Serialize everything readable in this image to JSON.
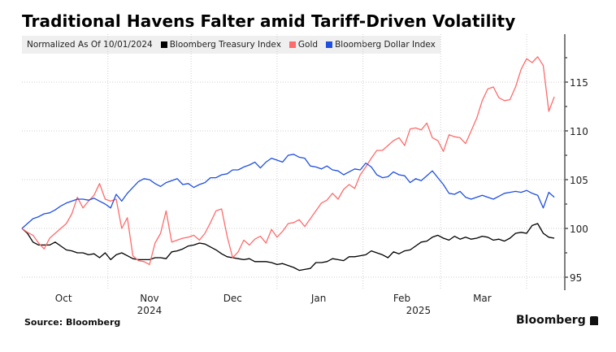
{
  "chart_data": {
    "type": "line",
    "title": "Traditional Havens Falter amid Tariff-Driven Volatility",
    "subtitle": "Normalized As Of 10/01/2024",
    "xlabel": "",
    "ylabel": "",
    "ylim": [
      94,
      119
    ],
    "y_ticks": [
      95,
      100,
      105,
      110,
      115
    ],
    "y_tick_labels": [
      "95",
      "100",
      "105",
      "110",
      "115"
    ],
    "y_axis_side": "right",
    "grid": true,
    "legend_position": "top-left",
    "x_domain_days": [
      0,
      195
    ],
    "x_month_boundaries_days": [
      0,
      31,
      61,
      92,
      123,
      151,
      182
    ],
    "x_tick_labels": [
      {
        "label": "Oct",
        "day": 15
      },
      {
        "label": "Nov",
        "day": 46
      },
      {
        "label": "Dec",
        "day": 76
      },
      {
        "label": "Jan",
        "day": 107
      },
      {
        "label": "Feb",
        "day": 137
      },
      {
        "label": "Mar",
        "day": 166
      }
    ],
    "x_year_labels": [
      {
        "label": "2024",
        "day": 46
      },
      {
        "label": "2025",
        "day": 143
      }
    ],
    "series": [
      {
        "name": "Bloomberg Treasury Index",
        "color": "#000000",
        "days": [
          0,
          2,
          4,
          6,
          8,
          10,
          12,
          14,
          16,
          18,
          20,
          22,
          24,
          26,
          28,
          30,
          32,
          34,
          36,
          38,
          40,
          42,
          44,
          46,
          48,
          50,
          52,
          54,
          56,
          58,
          60,
          62,
          64,
          66,
          68,
          70,
          72,
          74,
          76,
          78,
          80,
          82,
          84,
          86,
          88,
          90,
          92,
          94,
          96,
          98,
          100,
          102,
          104,
          106,
          108,
          110,
          112,
          114,
          116,
          118,
          120,
          122,
          124,
          126,
          128,
          130,
          132,
          134,
          136,
          138,
          140,
          142,
          144,
          146,
          148,
          150,
          152,
          154,
          156,
          158,
          160,
          162,
          164,
          166,
          168,
          170,
          172,
          174,
          176,
          178,
          180,
          182,
          184,
          186,
          188,
          190,
          192
        ],
        "values": [
          100,
          99.5,
          98.6,
          98.3,
          98.3,
          98.3,
          98.6,
          98.2,
          97.8,
          97.7,
          97.5,
          97.5,
          97.3,
          97.4,
          97.0,
          97.5,
          96.8,
          97.3,
          97.5,
          97.2,
          96.9,
          96.8,
          96.8,
          96.8,
          97.0,
          97.0,
          96.9,
          97.6,
          97.7,
          97.9,
          98.2,
          98.3,
          98.5,
          98.4,
          98.1,
          97.8,
          97.4,
          97.1,
          97.0,
          96.9,
          96.8,
          96.9,
          96.6,
          96.6,
          96.6,
          96.5,
          96.3,
          96.4,
          96.2,
          96.0,
          95.7,
          95.8,
          95.9,
          96.5,
          96.5,
          96.6,
          96.9,
          96.8,
          96.7,
          97.1,
          97.1,
          97.2,
          97.3,
          97.7,
          97.5,
          97.3,
          97.0,
          97.6,
          97.4,
          97.7,
          97.8,
          98.2,
          98.6,
          98.7,
          99.1,
          99.3,
          99.0,
          98.8,
          99.2,
          98.9,
          99.1,
          98.9,
          99.0,
          99.2,
          99.1,
          98.8,
          98.9,
          98.7,
          99.0,
          99.5,
          99.6,
          99.5,
          100.3,
          100.5,
          99.5,
          99.1,
          99.0
        ],
        "visible_x_range": "Oct 2024 – early Apr 2025"
      },
      {
        "name": "Gold",
        "color": "#ff6b6b",
        "days": [
          0,
          2,
          4,
          6,
          8,
          10,
          12,
          14,
          16,
          18,
          20,
          22,
          24,
          26,
          28,
          30,
          32,
          34,
          36,
          38,
          40,
          42,
          44,
          46,
          48,
          50,
          52,
          54,
          56,
          58,
          60,
          62,
          64,
          66,
          68,
          70,
          72,
          74,
          76,
          78,
          80,
          82,
          84,
          86,
          88,
          90,
          92,
          94,
          96,
          98,
          100,
          102,
          104,
          106,
          108,
          110,
          112,
          114,
          116,
          118,
          120,
          122,
          124,
          126,
          128,
          130,
          132,
          134,
          136,
          138,
          140,
          142,
          144,
          146,
          148,
          150,
          152,
          154,
          156,
          158,
          160,
          162,
          164,
          166,
          168,
          170,
          172,
          174,
          176,
          178,
          180,
          182,
          184,
          186,
          188,
          190,
          192
        ],
        "values": [
          100,
          99.6,
          99.3,
          98.5,
          97.9,
          99.0,
          99.5,
          100.0,
          100.5,
          101.5,
          103.2,
          102.1,
          102.8,
          103.4,
          104.6,
          103.0,
          102.8,
          103.0,
          100.0,
          101.1,
          97.2,
          96.7,
          96.6,
          96.3,
          98.5,
          99.5,
          101.8,
          98.6,
          98.8,
          99.0,
          99.1,
          99.3,
          98.8,
          99.5,
          100.6,
          101.8,
          102.0,
          99.2,
          97.0,
          97.6,
          98.8,
          98.3,
          98.9,
          99.2,
          98.5,
          99.9,
          99.1,
          99.7,
          100.5,
          100.6,
          100.9,
          100.2,
          101.0,
          101.8,
          102.6,
          102.9,
          103.6,
          103.0,
          104.0,
          104.5,
          104.1,
          105.5,
          106.3,
          107.2,
          108.0,
          108.0,
          108.5,
          109.0,
          109.3,
          108.5,
          110.2,
          110.3,
          110.1,
          110.8,
          109.3,
          109.0,
          107.9,
          109.6,
          109.4,
          109.3,
          108.7,
          110.0,
          111.3,
          113.1,
          114.3,
          114.5,
          113.4,
          113.1,
          113.2,
          114.5,
          116.3,
          117.4,
          117.0,
          117.6,
          116.7,
          112.0,
          113.5
        ],
        "visible_x_range": "Oct 2024 – early Apr 2025"
      },
      {
        "name": "Bloomberg Dollar Index",
        "color": "#1f4fe0",
        "days": [
          0,
          2,
          4,
          6,
          8,
          10,
          12,
          14,
          16,
          18,
          20,
          22,
          24,
          26,
          28,
          30,
          32,
          34,
          36,
          38,
          40,
          42,
          44,
          46,
          48,
          50,
          52,
          54,
          56,
          58,
          60,
          62,
          64,
          66,
          68,
          70,
          72,
          74,
          76,
          78,
          80,
          82,
          84,
          86,
          88,
          90,
          92,
          94,
          96,
          98,
          100,
          102,
          104,
          106,
          108,
          110,
          112,
          114,
          116,
          118,
          120,
          122,
          124,
          126,
          128,
          130,
          132,
          134,
          136,
          138,
          140,
          142,
          144,
          146,
          148,
          150,
          152,
          154,
          156,
          158,
          160,
          162,
          164,
          166,
          168,
          170,
          172,
          174,
          176,
          178,
          180,
          182,
          184,
          186,
          188,
          190,
          192
        ],
        "values": [
          100,
          100.5,
          101.0,
          101.2,
          101.5,
          101.6,
          101.9,
          102.3,
          102.6,
          102.8,
          103.0,
          103.0,
          102.9,
          103.1,
          102.8,
          102.5,
          102.1,
          103.5,
          102.8,
          103.6,
          104.2,
          104.8,
          105.1,
          105.0,
          104.6,
          104.3,
          104.7,
          104.9,
          105.1,
          104.5,
          104.6,
          104.2,
          104.5,
          104.7,
          105.2,
          105.2,
          105.5,
          105.6,
          106.0,
          106.0,
          106.3,
          106.5,
          106.8,
          106.2,
          106.8,
          107.2,
          107.0,
          106.8,
          107.5,
          107.6,
          107.3,
          107.2,
          106.4,
          106.3,
          106.1,
          106.4,
          106.0,
          105.9,
          105.5,
          105.8,
          106.1,
          106.0,
          106.7,
          106.3,
          105.5,
          105.2,
          105.3,
          105.8,
          105.5,
          105.4,
          104.7,
          105.1,
          104.9,
          105.4,
          105.9,
          105.2,
          104.5,
          103.6,
          103.5,
          103.8,
          103.2,
          103.0,
          103.2,
          103.4,
          103.2,
          103.0,
          103.3,
          103.6,
          103.7,
          103.8,
          103.7,
          103.9,
          103.6,
          103.4,
          102.1,
          103.7,
          103.2
        ],
        "visible_x_range": "Oct 2024 – early Apr 2025"
      }
    ],
    "source": "Source: Bloomberg",
    "brand": "Bloomberg"
  },
  "legend": {
    "note": "Normalized As Of 10/01/2024",
    "items": [
      {
        "label": "Bloomberg Treasury Index",
        "color": "#000000"
      },
      {
        "label": "Gold",
        "color": "#ff6b6b"
      },
      {
        "label": "Bloomberg Dollar Index",
        "color": "#1f4fe0"
      }
    ]
  }
}
